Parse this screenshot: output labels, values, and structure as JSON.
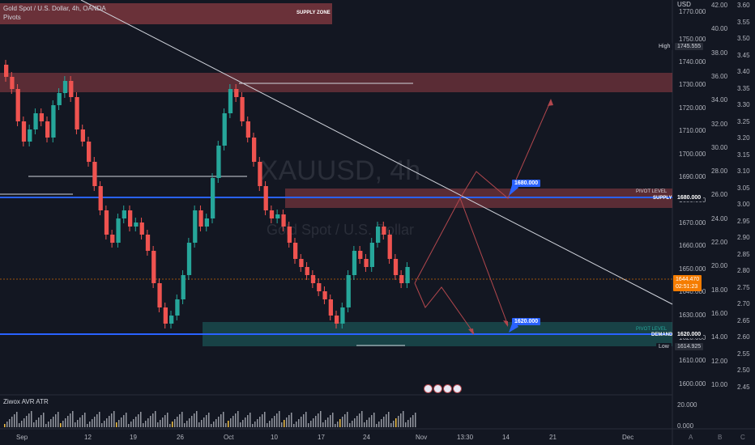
{
  "header": {
    "symbol_line": "Gold Spot / U.S. Dollar, 4h, OANDA",
    "indicator": "Pivots",
    "currency": "USD",
    "watermark_symbol": "XAUUSD, 4h",
    "watermark_name": "Gold Spot / U.S. Dollar"
  },
  "zones": {
    "supply_zone_label": "SUPPLY ZONE",
    "pivot_top_label": "PIVOT LEVEL",
    "supply_label": "SUPPLY",
    "pivot_bottom_label": "PIVOT LEVEL",
    "demand_label": "DEMAND"
  },
  "callouts": {
    "upper": "1680.000",
    "lower": "1620.000"
  },
  "price_axis": {
    "ticks": [
      "1770.000",
      "1750.000",
      "1740.000",
      "1730.000",
      "1720.000",
      "1710.000",
      "1700.000",
      "1690.000",
      "1680.000",
      "1670.000",
      "1660.000",
      "1650.000",
      "1640.000",
      "1630.000",
      "1620.000",
      "1610.000",
      "1600.000"
    ],
    "high_label": "High",
    "high_value": "1745.555",
    "low_label": "Low",
    "low_value": "1614.925",
    "supply_value": "1680.000",
    "demand_value": "1620.000",
    "current_price": "1644.470",
    "countdown": "02:51:23"
  },
  "secondary_axis": {
    "ticks": [
      "42.00",
      "40.00",
      "38.00",
      "36.00",
      "34.00",
      "32.00",
      "30.00",
      "28.00",
      "26.00",
      "24.00",
      "22.00",
      "20.00",
      "18.00",
      "16.00",
      "14.00",
      "12.00",
      "10.00"
    ],
    "ratio_ticks": [
      "3.60",
      "3.55",
      "3.50",
      "3.45",
      "3.40",
      "3.35",
      "3.30",
      "3.25",
      "3.20",
      "3.15",
      "3.10",
      "3.05",
      "3.00",
      "2.95",
      "2.90",
      "2.85",
      "2.80",
      "2.75",
      "2.70",
      "2.65",
      "2.60",
      "2.55",
      "2.50",
      "2.45"
    ]
  },
  "indicator_pane": {
    "name": "Ziwox AVR ATR",
    "ticks": [
      "20.000",
      "0.000"
    ]
  },
  "time_axis": {
    "labels": [
      "Sep",
      "12",
      "19",
      "26",
      "Oct",
      "10",
      "17",
      "24",
      "Nov",
      "13:30",
      "14",
      "21",
      "Dec"
    ]
  },
  "footer_buttons": [
    "A",
    "B",
    "C"
  ],
  "colors": {
    "background": "#131722",
    "bull": "#26a69a",
    "bear": "#ef5350",
    "pivot_line": "#2962ff",
    "supply_fill": "#b2474d",
    "demand_fill": "#26a69a"
  }
}
